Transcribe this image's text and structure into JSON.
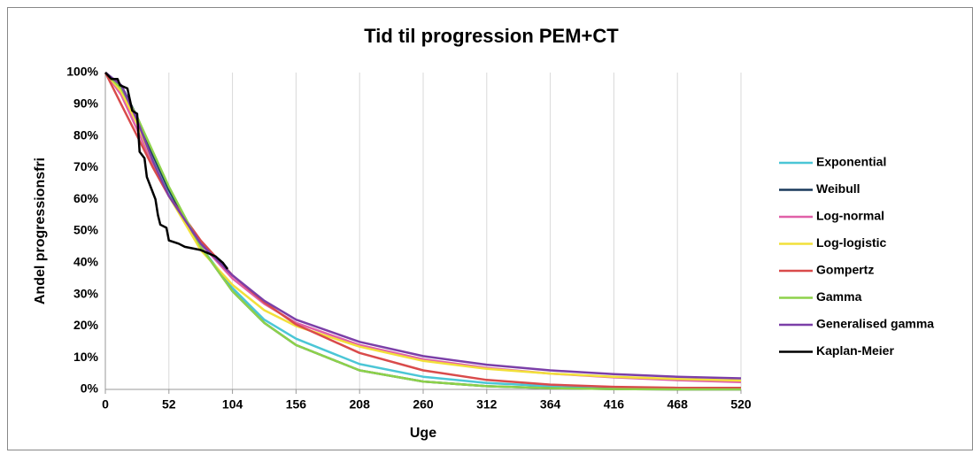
{
  "chart_data": {
    "type": "line",
    "title": "Tid til progression PEM+CT",
    "x_label": "Uge",
    "y_label": "Andel progressionsfri",
    "x": [
      0,
      13,
      26,
      39,
      52,
      78,
      104,
      130,
      156,
      208,
      260,
      312,
      364,
      416,
      468,
      520
    ],
    "series": [
      {
        "name": "Exponential",
        "color": "#4bc6d6",
        "values": [
          100,
          94,
          84,
          73,
          62,
          45,
          32,
          22,
          16,
          8,
          4,
          2,
          1,
          0.5,
          0.3,
          0.2
        ]
      },
      {
        "name": "Weibull",
        "color": "#1a3a5c",
        "values": [
          100,
          96,
          86,
          74,
          63,
          45,
          31,
          21,
          14,
          6,
          2.5,
          1,
          0.4,
          0.1,
          0,
          0
        ]
      },
      {
        "name": "Log-normal",
        "color": "#e060a8",
        "values": [
          100,
          93,
          82,
          71,
          61,
          46,
          35,
          27,
          21,
          14,
          9.5,
          6.8,
          5,
          3.8,
          2.9,
          2.3
        ]
      },
      {
        "name": "Log-logistic",
        "color": "#f2e03a",
        "values": [
          100,
          94,
          84,
          72,
          61,
          44,
          33,
          25,
          20,
          13.5,
          9,
          6.5,
          5,
          4,
          3.3,
          2.8
        ]
      },
      {
        "name": "Gompertz",
        "color": "#d94b4b",
        "values": [
          100,
          90,
          80,
          70,
          61,
          47,
          36,
          27.5,
          20.5,
          11.5,
          6,
          3,
          1.5,
          0.8,
          0.5,
          0.5
        ]
      },
      {
        "name": "Gamma",
        "color": "#8dd24a",
        "values": [
          100,
          95,
          86,
          75,
          64,
          45,
          31,
          21,
          14,
          6,
          2.5,
          1,
          0.4,
          0.1,
          0,
          0
        ]
      },
      {
        "name": "Generalised gamma",
        "color": "#7b3fa8",
        "values": [
          100,
          96,
          85,
          72,
          61,
          46,
          36,
          28,
          22,
          15,
          10.5,
          7.8,
          6,
          4.8,
          4,
          3.5
        ]
      },
      {
        "name": "Kaplan-Meier",
        "color": "#000000",
        "x": [
          0,
          5,
          10,
          12,
          18,
          22,
          26,
          28,
          32,
          34,
          38,
          41,
          43,
          45,
          50,
          52,
          60,
          65,
          78,
          90,
          96,
          100
        ],
        "values": [
          100,
          98,
          98,
          96,
          95,
          88,
          87,
          75,
          73,
          67,
          63,
          60,
          55,
          52,
          51,
          47,
          46,
          45,
          44,
          42,
          40,
          38
        ]
      }
    ],
    "xlim": [
      0,
      520
    ],
    "xticks": [
      0,
      52,
      104,
      156,
      208,
      260,
      312,
      364,
      416,
      468,
      520
    ],
    "ylim": [
      0,
      100
    ],
    "yticks": [
      {
        "value": 0,
        "label": "0%"
      },
      {
        "value": 10,
        "label": "10%"
      },
      {
        "value": 20,
        "label": "20%"
      },
      {
        "value": 30,
        "label": "30%"
      },
      {
        "value": 40,
        "label": "40%"
      },
      {
        "value": 50,
        "label": "50%"
      },
      {
        "value": 60,
        "label": "60%"
      },
      {
        "value": 70,
        "label": "70%"
      },
      {
        "value": 80,
        "label": "80%"
      },
      {
        "value": 90,
        "label": "90%"
      },
      {
        "value": 100,
        "label": "100%"
      }
    ],
    "grid": "x",
    "legend": "right"
  }
}
